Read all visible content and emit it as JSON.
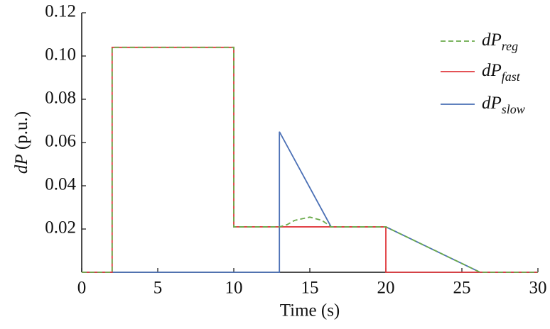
{
  "chart_data": {
    "type": "line",
    "xlabel": "Time (s)",
    "ylabel": {
      "italic": "dP",
      "text": "(p.u.)"
    },
    "xlim": [
      0,
      30
    ],
    "xticks": [
      0,
      5,
      10,
      15,
      20,
      25,
      30
    ],
    "ylim": [
      0,
      0.12
    ],
    "yticks": [
      0.02,
      0.04,
      0.06,
      0.08,
      {
        "value": 0.1,
        "label": "0.10"
      },
      0.12
    ],
    "legend": "upper-right",
    "series": [
      {
        "name": "dP",
        "subscript": "reg",
        "color": "#6aaa4a",
        "dashed": true,
        "x": [
          0,
          2,
          2,
          10,
          10,
          13,
          13.5,
          14,
          15,
          15.8,
          16.4,
          20,
          26.2,
          30
        ],
        "values": [
          0,
          0,
          0.104,
          0.104,
          0.021,
          0.021,
          0.022,
          0.024,
          0.0255,
          0.024,
          0.021,
          0.021,
          0,
          0
        ]
      },
      {
        "name": "dP",
        "subscript": "fast",
        "color": "#e0393e",
        "dashed": false,
        "x": [
          0,
          2,
          2,
          10,
          10,
          20,
          20,
          30
        ],
        "values": [
          0,
          0,
          0.104,
          0.104,
          0.021,
          0.021,
          0,
          0
        ]
      },
      {
        "name": "dP",
        "subscript": "slow",
        "color": "#4a6fb5",
        "dashed": false,
        "x": [
          0,
          13,
          13,
          16.4,
          20,
          26.2,
          30
        ],
        "values": [
          0,
          0,
          0.065,
          0.021,
          0.021,
          0,
          0
        ]
      }
    ]
  }
}
